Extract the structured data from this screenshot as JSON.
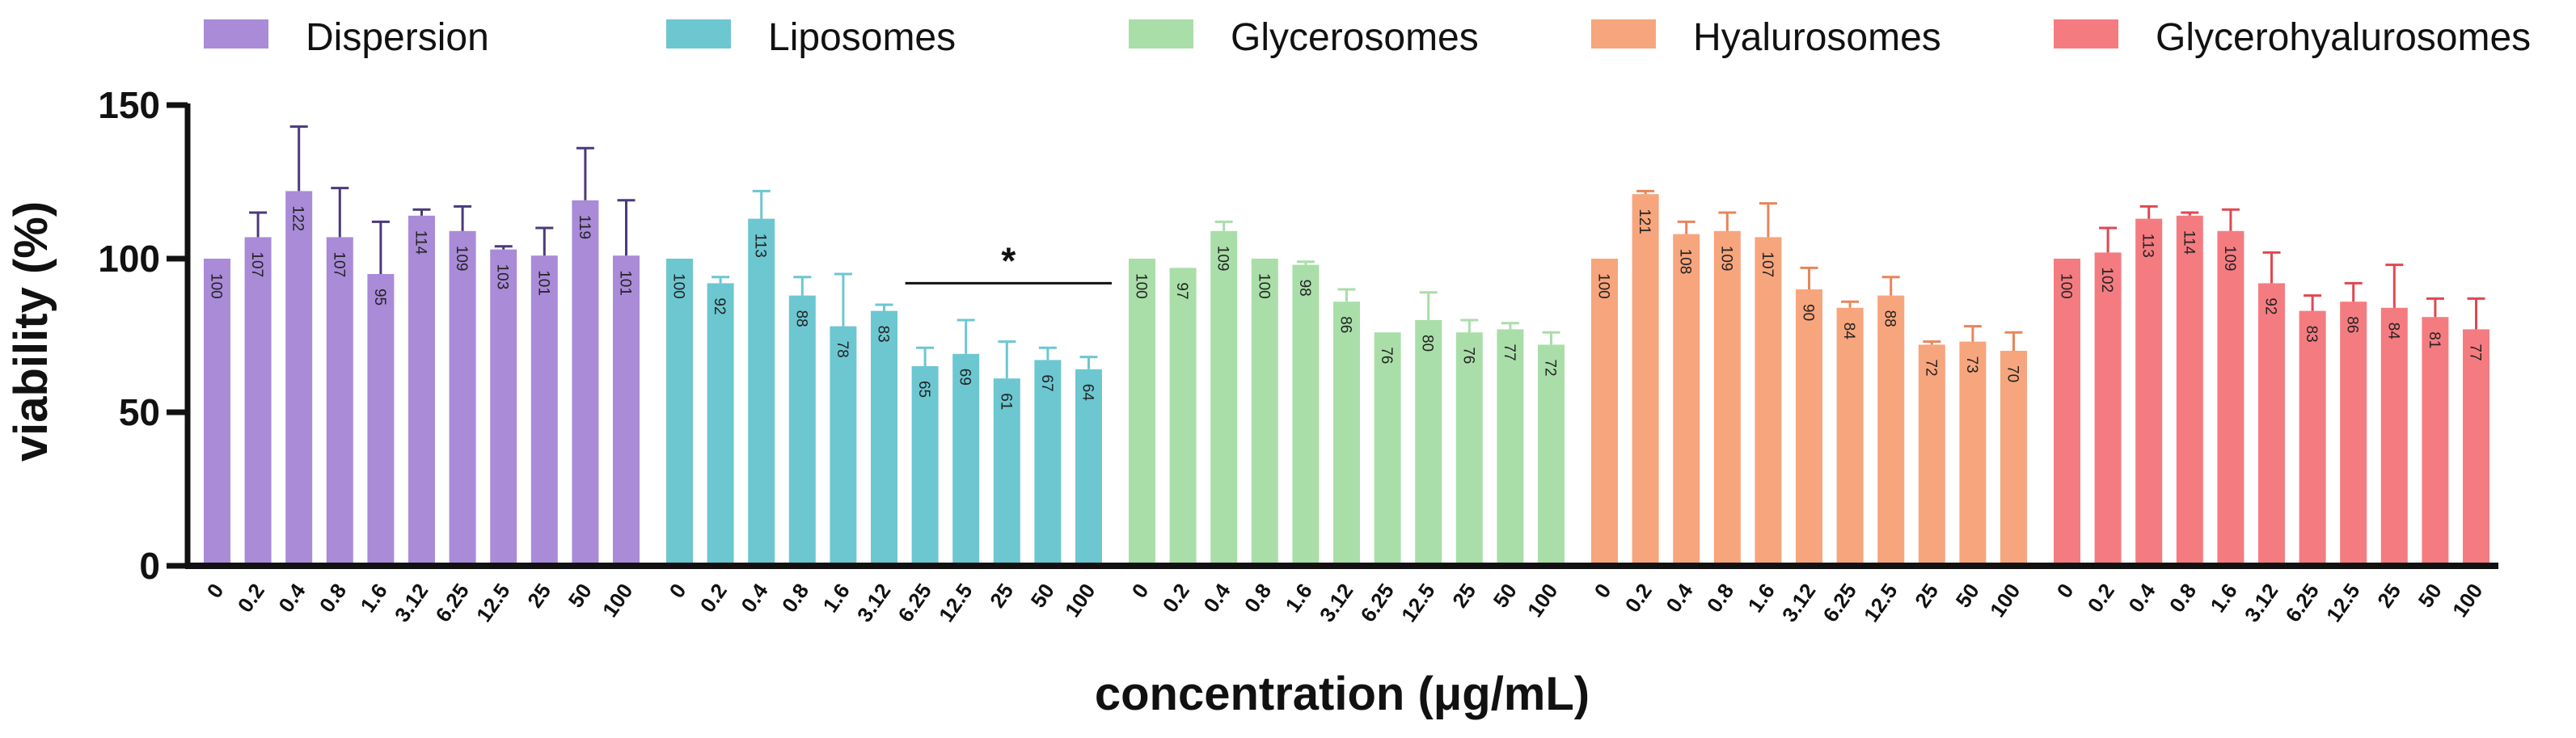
{
  "chart_data": {
    "type": "bar",
    "title": "",
    "xlabel": "concentration (μg/mL)",
    "ylabel": "viability (%)",
    "ylim": [
      0,
      150
    ],
    "yticks": [
      0,
      50,
      100,
      150
    ],
    "legend_position": "top",
    "categories": [
      "0",
      "0.2",
      "0.4",
      "0.8",
      "1.6",
      "3.12",
      "6.25",
      "12.5",
      "25",
      "50",
      "100"
    ],
    "series": [
      {
        "name": "Dispersion",
        "color": "#A98BD8",
        "errcolor": "#4B3A7A",
        "values": [
          100,
          107,
          122,
          107,
          95,
          114,
          109,
          103,
          101,
          119,
          101
        ],
        "errors": [
          0,
          8,
          21,
          16,
          17,
          2,
          8,
          1,
          9,
          17,
          18
        ]
      },
      {
        "name": "Liposomes",
        "color": "#6CC7D1",
        "errcolor": "#6CC7D1",
        "values": [
          100,
          92,
          113,
          88,
          78,
          83,
          65,
          69,
          61,
          67,
          64
        ],
        "errors": [
          0,
          2,
          9,
          6,
          17,
          2,
          6,
          11,
          12,
          4,
          4
        ]
      },
      {
        "name": "Glycerosomes",
        "color": "#A9DEA9",
        "errcolor": "#A9DEA9",
        "values": [
          100,
          97,
          109,
          100,
          98,
          86,
          76,
          80,
          76,
          77,
          72
        ],
        "errors": [
          0,
          0,
          3,
          0,
          1,
          4,
          0,
          9,
          4,
          2,
          4
        ]
      },
      {
        "name": "Hyalurosomes",
        "color": "#F7A57D",
        "errcolor": "#E8855A",
        "values": [
          100,
          121,
          108,
          109,
          107,
          90,
          84,
          88,
          72,
          73,
          70
        ],
        "errors": [
          0,
          1,
          4,
          6,
          11,
          7,
          2,
          6,
          1,
          5,
          6
        ]
      },
      {
        "name": "Glycerohyalurosomes",
        "color": "#F47C81",
        "errcolor": "#E0484F",
        "values": [
          100,
          102,
          113,
          114,
          109,
          92,
          83,
          86,
          84,
          81,
          77
        ],
        "errors": [
          0,
          8,
          4,
          1,
          7,
          10,
          5,
          6,
          14,
          6,
          10
        ]
      }
    ],
    "annotations": [
      {
        "series": "Liposomes",
        "from_category": "6.25",
        "to_category": "100",
        "y": 92,
        "text": "*"
      }
    ]
  }
}
